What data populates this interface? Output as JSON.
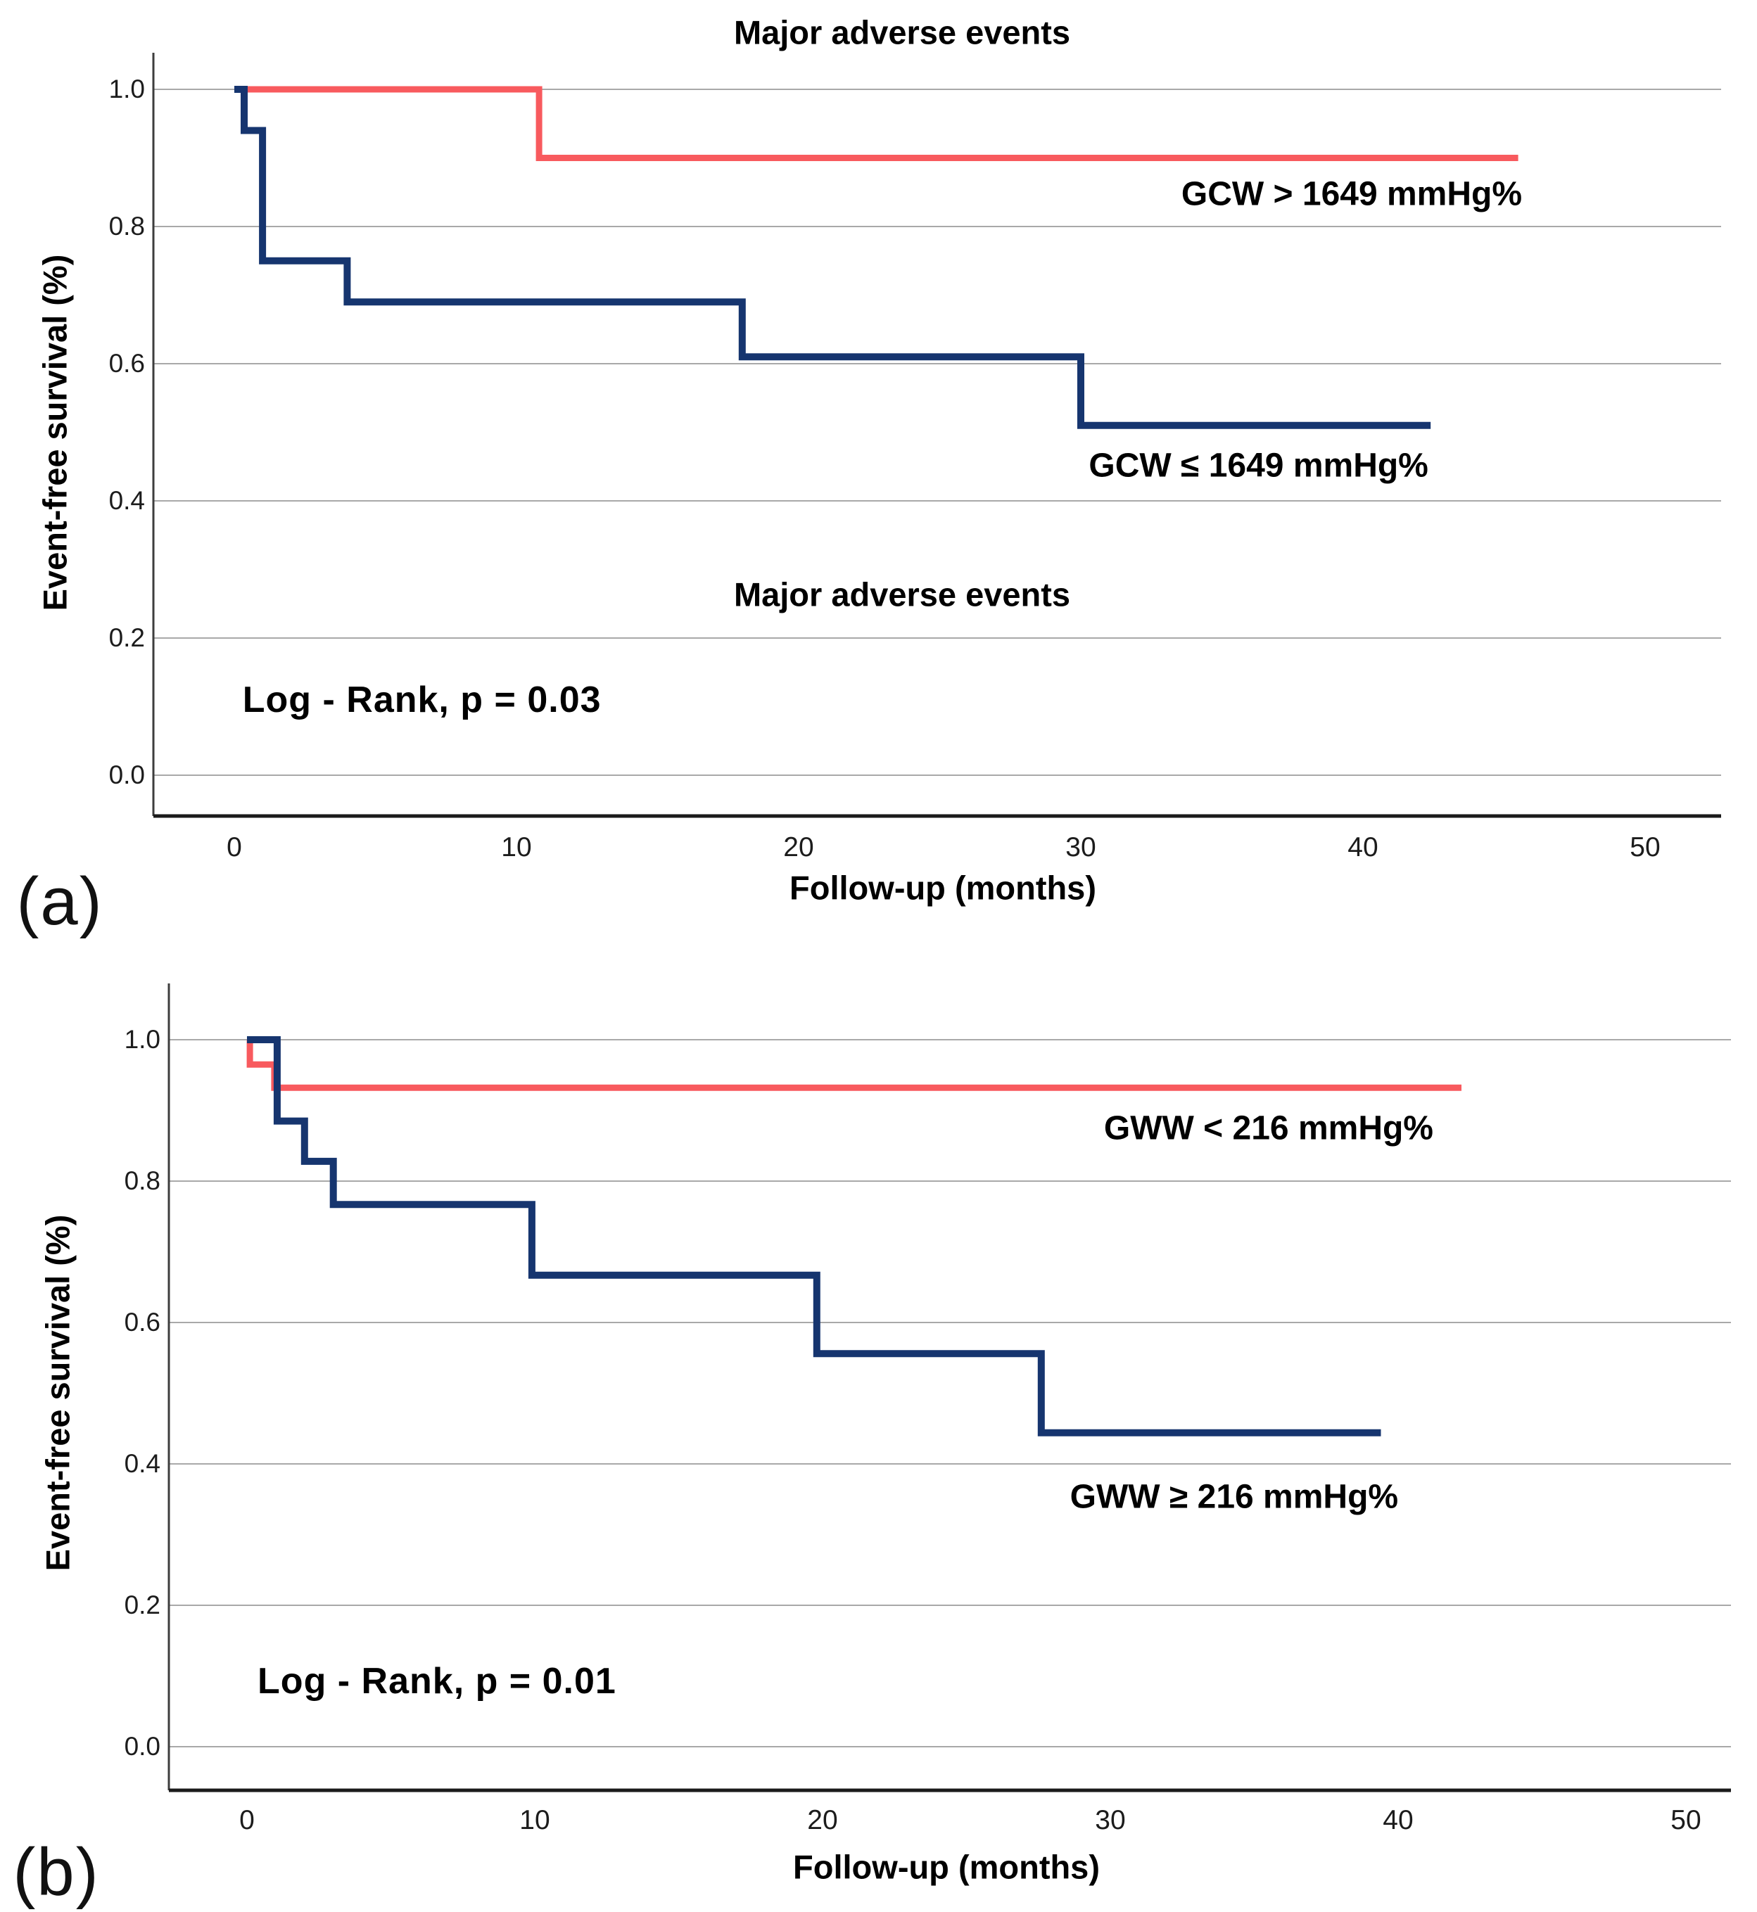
{
  "figure": {
    "background": "#ffffff",
    "panel_letters": [
      "(a)",
      "(b)"
    ]
  },
  "colors": {
    "red_series": "#f85a5e",
    "blue_series": "#16356f",
    "gridline": "#a9a9a9",
    "left_spine": "#3d3d3d",
    "bottom_spine": "#1a1a1a",
    "text": "#000000"
  },
  "chart_data": [
    {
      "type": "line",
      "subtype": "kaplan-meier-step",
      "panel_letter": "(a)",
      "title": "Major adverse events",
      "xlabel": "Follow-up (months)",
      "ylabel": "Event-free survival (%)",
      "annotation": "Log - Rank, p = 0.03",
      "annotation_at": [
        6.65,
        0.11
      ],
      "x_ticks": [
        0,
        10,
        20,
        30,
        40,
        50
      ],
      "y_ticks": [
        "1.0",
        "0.8",
        "0.6",
        "0.4",
        "0.2",
        "0.0"
      ],
      "ylim": [
        0.0,
        1.0
      ],
      "xlim": [
        0,
        50
      ],
      "grid": "horizontal",
      "legend_position": "inline-labels",
      "series": [
        {
          "name": "GCW > 1649 mmHg%",
          "color_key": "red_series",
          "label_at": [
            39.6,
            0.847
          ],
          "steps": [
            [
              0,
              1.0
            ],
            [
              10.8,
              1.0
            ],
            [
              10.8,
              0.9
            ],
            [
              45.5,
              0.9
            ]
          ]
        },
        {
          "name": "GCW ≤ 1649 mmHg%",
          "color_key": "blue_series",
          "label_at": [
            36.3,
            0.451
          ],
          "steps": [
            [
              0,
              1.0
            ],
            [
              0.35,
              1.0
            ],
            [
              0.35,
              0.94
            ],
            [
              1.0,
              0.94
            ],
            [
              1.0,
              0.75
            ],
            [
              4.0,
              0.75
            ],
            [
              4.0,
              0.69
            ],
            [
              18.0,
              0.69
            ],
            [
              18.0,
              0.61
            ],
            [
              30.0,
              0.61
            ],
            [
              30.0,
              0.51
            ],
            [
              42.4,
              0.51
            ]
          ]
        }
      ]
    },
    {
      "type": "line",
      "subtype": "kaplan-meier-step",
      "panel_letter": "(b)",
      "title": "Major adverse events",
      "xlabel": "Follow-up (months)",
      "ylabel": "Event-free survival (%)",
      "annotation": "Log - Rank, p = 0.01",
      "annotation_at": [
        6.6,
        0.093
      ],
      "x_ticks": [
        0,
        10,
        20,
        30,
        40,
        50
      ],
      "y_ticks": [
        "1.0",
        "0.8",
        "0.6",
        "0.4",
        "0.2",
        "0.0"
      ],
      "ylim": [
        0.0,
        1.0
      ],
      "xlim": [
        0,
        50
      ],
      "grid": "horizontal",
      "legend_position": "inline-labels",
      "series": [
        {
          "name": "GWW < 216 mmHg%",
          "color_key": "red_series",
          "label_at": [
            35.5,
            0.875
          ],
          "steps": [
            [
              0,
              1.0
            ],
            [
              0.1,
              1.0
            ],
            [
              0.1,
              0.965
            ],
            [
              0.95,
              0.965
            ],
            [
              0.95,
              0.932
            ],
            [
              42.2,
              0.932
            ]
          ]
        },
        {
          "name": "GWW ≥ 216 mmHg%",
          "color_key": "blue_series",
          "label_at": [
            34.3,
            0.353
          ],
          "steps": [
            [
              0,
              1.0
            ],
            [
              1.05,
              1.0
            ],
            [
              1.05,
              0.885
            ],
            [
              2.0,
              0.885
            ],
            [
              2.0,
              0.828
            ],
            [
              3.0,
              0.828
            ],
            [
              3.0,
              0.767
            ],
            [
              9.9,
              0.767
            ],
            [
              9.9,
              0.667
            ],
            [
              19.8,
              0.667
            ],
            [
              19.8,
              0.556
            ],
            [
              27.6,
              0.556
            ],
            [
              27.6,
              0.444
            ],
            [
              39.4,
              0.444
            ]
          ]
        }
      ]
    }
  ]
}
